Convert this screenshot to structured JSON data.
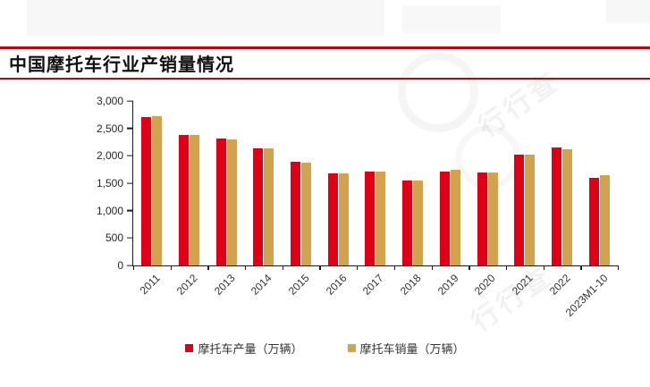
{
  "header": {
    "title": "中国摩托车行业产销量情况"
  },
  "chart_data": {
    "type": "bar",
    "title": "中国摩托车行业产销量情况",
    "categories": [
      "2011",
      "2012",
      "2013",
      "2014",
      "2015",
      "2016",
      "2017",
      "2018",
      "2019",
      "2020",
      "2021",
      "2022",
      "2023M1-10"
    ],
    "series": [
      {
        "key": "production",
        "name": "摩托车产量（万辆）",
        "color": "#de0017",
        "values": [
          2700,
          2375,
          2320,
          2130,
          1885,
          1680,
          1710,
          1555,
          1705,
          1700,
          2020,
          2145,
          1590
        ]
      },
      {
        "key": "sales",
        "name": "摩托车销量（万辆）",
        "color": "#d2a24e",
        "values": [
          2720,
          2375,
          2300,
          2130,
          1875,
          1680,
          1710,
          1550,
          1750,
          1700,
          2020,
          2120,
          1640
        ]
      }
    ],
    "unit": "万辆",
    "ylim": [
      0,
      3000
    ],
    "yticks": [
      0,
      500,
      1000,
      1500,
      2000,
      2500,
      3000
    ],
    "ytick_labels": [
      "0",
      "500",
      "1,000",
      "1,500",
      "2,000",
      "2,500",
      "3,000"
    ],
    "grid": false,
    "legend_position": "bottom"
  },
  "watermark": {
    "brand": "行行查"
  },
  "accent": {
    "rule_color": "#c9000b"
  }
}
